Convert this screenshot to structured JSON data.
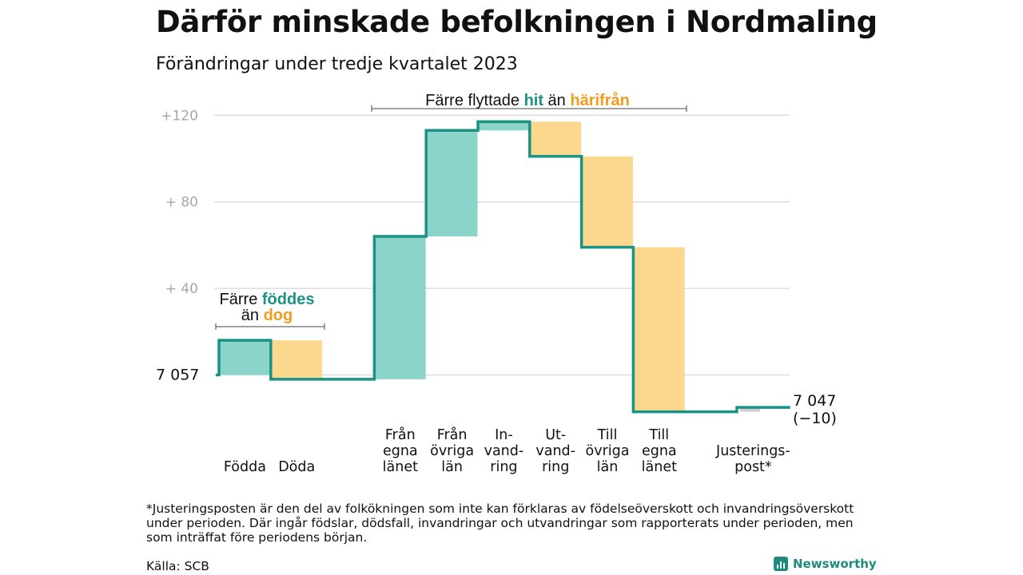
{
  "title": "Därför minskade befolkningen i Nordmaling",
  "subtitle": "Förändringar under tredje kvartalet 2023",
  "chart_data": {
    "type": "waterfall",
    "start_label": "7 057",
    "end_label": "7 047",
    "end_change_label": "(−10)",
    "steps": [
      {
        "label": [
          "Födda"
        ],
        "delta": 16
      },
      {
        "label": [
          "Döda"
        ],
        "delta": -18
      },
      {
        "label": [],
        "delta": 0
      },
      {
        "label": [
          "Från",
          "egna",
          "länet"
        ],
        "delta": 66
      },
      {
        "label": [
          "Från",
          "övriga",
          "län"
        ],
        "delta": 49
      },
      {
        "label": [
          "In-",
          "vand-",
          "ring"
        ],
        "delta": 4
      },
      {
        "label": [
          "Ut-",
          "vand-",
          "ring"
        ],
        "delta": -16
      },
      {
        "label": [
          "Till",
          "övriga",
          "län"
        ],
        "delta": -42
      },
      {
        "label": [
          "Till",
          "egna",
          "länet"
        ],
        "delta": -76
      },
      {
        "label": [],
        "delta": 0
      },
      {
        "label": [
          "Justerings-",
          "post*"
        ],
        "delta": 2
      }
    ],
    "y_ticks": [
      {
        "value": 120,
        "label": "+120"
      },
      {
        "value": 80,
        "label": "+  80"
      },
      {
        "value": 40,
        "label": "+  40"
      }
    ],
    "ylim": [
      -12,
      128
    ],
    "annotations": [
      {
        "id": "births",
        "parts": [
          {
            "line": 0,
            "text": "Färre ",
            "style": "plain"
          },
          {
            "line": 0,
            "text": "föddes",
            "style": "teal"
          },
          {
            "line": 1,
            "text": "än ",
            "style": "plain"
          },
          {
            "line": 1,
            "text": "dog",
            "style": "orange"
          }
        ]
      },
      {
        "id": "moves",
        "parts": [
          {
            "line": 0,
            "text": "Färre flyttade ",
            "style": "plain"
          },
          {
            "line": 0,
            "text": "hit",
            "style": "teal"
          },
          {
            "line": 0,
            "text": " än ",
            "style": "plain"
          },
          {
            "line": 0,
            "text": "härifrån",
            "style": "orange"
          }
        ]
      }
    ],
    "colors": {
      "increase": "#8ad4c9",
      "decrease": "#fcd78e",
      "line": "#1a9384",
      "teal_text": "#1a9384",
      "orange_text": "#f39c1f",
      "adjustment": "#cfcfcf",
      "grid": "#dddddd",
      "tick_text": "#a7a7a7"
    }
  },
  "footnote": "*Justeringsposten är den del av folkökningen som inte kan förklaras av födelseöverskott och invandringsöverskott under perioden. Där ingår födslar, dödsfall, invandringar och utvandringar som rapporterats under perioden, men som inträffat före periodens början.",
  "source": "Källa: SCB",
  "logo": {
    "name": "Newsworthy",
    "icon": "bar-chart-icon"
  }
}
